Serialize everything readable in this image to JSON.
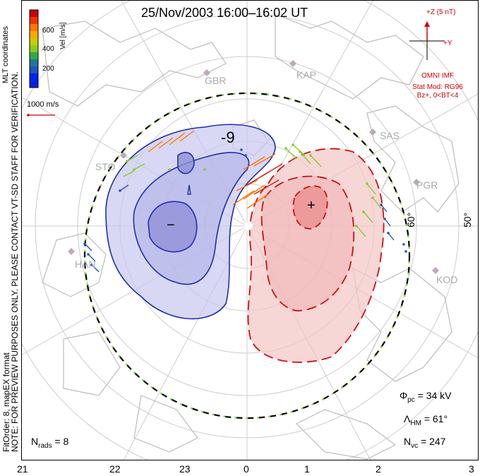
{
  "title": "25/Nov/2003 16:00–16:02 UT",
  "notes": {
    "line1": "NOTE: FOR PREVIEW PURPOSES ONLY. PLEASE CONTACT VT-SD STAFF FOR VERIFICATION.",
    "line2": "FitOrder: 8, mapEX format"
  },
  "colorbar": {
    "title": "Vel [m/s]",
    "coordinates_label": "MLT coordinates",
    "ticks": [
      "600",
      "400",
      "200"
    ],
    "colors": [
      "#cc0000",
      "#ee3300",
      "#ff7700",
      "#ffaa00",
      "#cccc00",
      "#88cc22",
      "#33aa44",
      "#227799",
      "#2255bb",
      "#0022ee"
    ]
  },
  "velocity_reference": "1000 m/s",
  "imf": {
    "z_label": "+Z (5 nT)",
    "y_label": "+Y",
    "source": "OMNI IMF",
    "model_line1": "Stat Mod: RG96",
    "model_line2": "Bz+, 0<BT<4"
  },
  "contours": {
    "negative_label": "-9",
    "minimum_marker": "−",
    "maximum_marker": "+"
  },
  "radars": [
    "GBR",
    "KAP",
    "SAS",
    "PGR",
    "KOD",
    "STO",
    "HAN"
  ],
  "latitude_labels": [
    "60°",
    "50°"
  ],
  "mlt_ticks": [
    "21",
    "22",
    "23",
    "0",
    "1",
    "2",
    "3"
  ],
  "stats": {
    "phi_pc": "Φpc = 34 kV",
    "phi_symbol": "Φ",
    "phi_sub": "pc",
    "phi_value": "= 34 kV",
    "lambda_symbol": "Λ",
    "lambda_sub": "HM",
    "lambda_value": "= 61°",
    "nvc_symbol": "N",
    "nvc_sub": "vc",
    "nvc_value": "= 247",
    "nrads_symbol": "N",
    "nrads_sub": "rads",
    "nrads_value": "= 8"
  }
}
